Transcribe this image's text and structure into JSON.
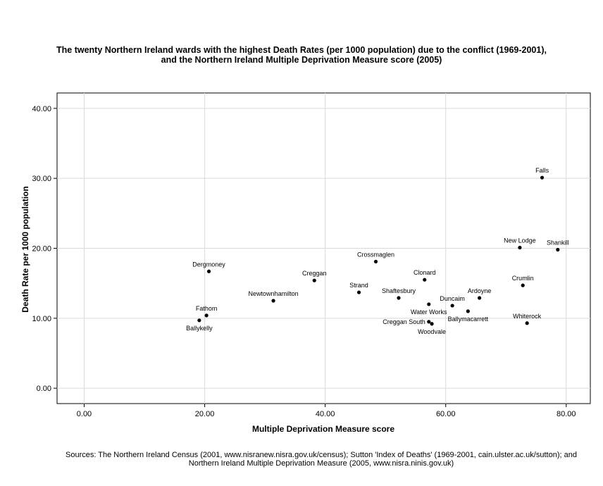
{
  "title_line1": "The twenty Northern Ireland wards with the highest Death Rates (per 1000 population) due to the conflict (1969-2001),",
  "title_line2": "and the Northern Ireland Multiple Deprivation Measure score (2005)",
  "source_line1": "Sources: The Northern Ireland Census (2001, www.nisranew.nisra.gov.uk/census); Sutton 'Index of Deaths' (1969-2001, cain.ulster.ac.uk/sutton); and",
  "source_line2": "Northern Ireland Multiple Deprivation Measure (2005, www.nisra.ninis.gov.uk)",
  "chart_data": {
    "type": "scatter",
    "title": "The twenty Northern Ireland wards with the highest Death Rates (per 1000 population) due to the conflict (1969-2001), and the Northern Ireland Multiple Deprivation Measure score (2005)",
    "xlabel": "Multiple Deprivation Measure score",
    "ylabel": "Death Rate per 1000 population",
    "xlim": [
      -4.5,
      84.0
    ],
    "ylim": [
      -2.2,
      42.2
    ],
    "xticks": [
      0,
      20,
      40,
      60,
      80
    ],
    "yticks": [
      0,
      10,
      20,
      30,
      40
    ],
    "xtick_labels": [
      "0.00",
      "20.00",
      "40.00",
      "60.00",
      "80.00"
    ],
    "ytick_labels": [
      "0.00",
      "10.00",
      "20.00",
      "30.00",
      "40.00"
    ],
    "grid": true,
    "points": [
      {
        "label": "Falls",
        "x": 76.0,
        "y": 30.1,
        "pos": "above"
      },
      {
        "label": "New Lodge",
        "x": 72.3,
        "y": 20.1,
        "pos": "above"
      },
      {
        "label": "Shankill",
        "x": 78.6,
        "y": 19.8,
        "pos": "above"
      },
      {
        "label": "Dergmoney",
        "x": 20.7,
        "y": 16.7,
        "pos": "above"
      },
      {
        "label": "Crossmaglen",
        "x": 48.4,
        "y": 18.1,
        "pos": "above"
      },
      {
        "label": "Creggan",
        "x": 38.2,
        "y": 15.4,
        "pos": "above"
      },
      {
        "label": "Clonard",
        "x": 56.5,
        "y": 15.5,
        "pos": "above"
      },
      {
        "label": "Crumlin",
        "x": 72.8,
        "y": 14.7,
        "pos": "above"
      },
      {
        "label": "Strand",
        "x": 45.6,
        "y": 13.7,
        "pos": "above"
      },
      {
        "label": "Newtownhamilton",
        "x": 31.4,
        "y": 12.5,
        "pos": "above"
      },
      {
        "label": "Shaftesbury",
        "x": 52.2,
        "y": 12.9,
        "pos": "above"
      },
      {
        "label": "Ardoyne",
        "x": 65.6,
        "y": 12.9,
        "pos": "above"
      },
      {
        "label": "Duncaim",
        "x": 61.1,
        "y": 11.8,
        "pos": "above"
      },
      {
        "label": "Water Works",
        "x": 57.2,
        "y": 12.0,
        "pos": "below"
      },
      {
        "label": "Ballymacarrett",
        "x": 63.7,
        "y": 11.0,
        "pos": "below"
      },
      {
        "label": "Fathom",
        "x": 20.3,
        "y": 10.4,
        "pos": "above"
      },
      {
        "label": "Ballykelly",
        "x": 19.1,
        "y": 9.7,
        "pos": "below"
      },
      {
        "label": "Whiterock",
        "x": 73.5,
        "y": 9.3,
        "pos": "above"
      },
      {
        "label": "Creggan South",
        "x": 57.2,
        "y": 9.5,
        "pos": "left"
      },
      {
        "label": "Woodvale",
        "x": 57.7,
        "y": 9.2,
        "pos": "below"
      }
    ]
  }
}
